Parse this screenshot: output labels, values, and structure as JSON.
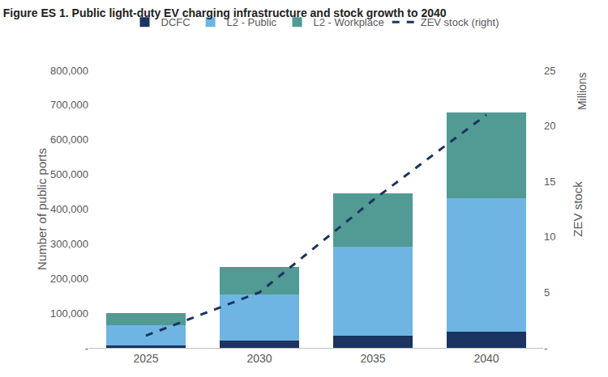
{
  "chart_data": {
    "type": "bar",
    "title": "Figure ES 1. Public light-duty EV charging infrastructure and stock growth to 2040",
    "stacked": true,
    "grid": false,
    "legend": "top",
    "categories": [
      "2025",
      "2030",
      "2035",
      "2040"
    ],
    "y_label": "Number of public ports",
    "y2_label": "ZEV stock",
    "annotations": [
      "Millions"
    ],
    "ylim": [
      0,
      800000
    ],
    "yticks": [
      {
        "value": 0,
        "label": "-"
      },
      {
        "value": 100000,
        "label": "100,000"
      },
      {
        "value": 200000,
        "label": "200,000"
      },
      {
        "value": 300000,
        "label": "300,000"
      },
      {
        "value": 400000,
        "label": "400,000"
      },
      {
        "value": 500000,
        "label": "500,000"
      },
      {
        "value": 600000,
        "label": "600,000"
      },
      {
        "value": 700000,
        "label": "700,000"
      },
      {
        "value": 800000,
        "label": "800,000"
      }
    ],
    "y2lim": [
      0,
      25
    ],
    "y2ticks": [
      {
        "value": 0,
        "label": "-"
      },
      5,
      10,
      15,
      20,
      25
    ],
    "series": [
      {
        "name": "DCFC",
        "type": "bar",
        "color": "#1b3461",
        "values": [
          8000,
          20000,
          35000,
          47000
        ]
      },
      {
        "name": "L2 - Public",
        "type": "bar",
        "color": "#6fb5e3",
        "values": [
          57000,
          135000,
          257000,
          385000
        ]
      },
      {
        "name": "L2 - Workplace",
        "type": "bar",
        "color": "#529a94",
        "values": [
          35000,
          78000,
          153000,
          246000
        ]
      },
      {
        "name": "ZEV stock (right)",
        "type": "line",
        "axis": "y2",
        "color": "#1b3461",
        "line_style": "dashed",
        "values": [
          1.1,
          5.0,
          13.3,
          21.0
        ]
      }
    ]
  }
}
